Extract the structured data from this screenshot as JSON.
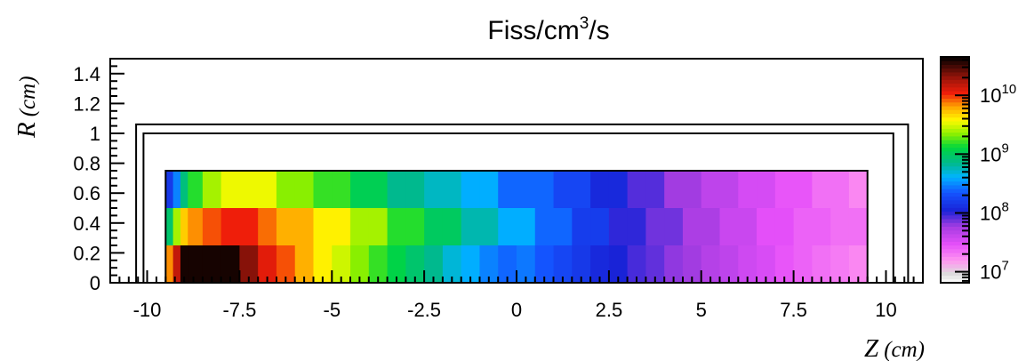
{
  "chart_data": {
    "type": "heatmap",
    "title": "Fiss/cm",
    "title_superscript": "3",
    "title_suffix": "/s",
    "xlabel": "Z",
    "xlabel_unit": "(cm)",
    "ylabel": "R",
    "ylabel_unit": "(cm)",
    "xlim": [
      -11,
      11
    ],
    "ylim": [
      0,
      1.5
    ],
    "x_ticks": [
      "-10",
      "-7.5",
      "-5",
      "-2.5",
      "0",
      "2.5",
      "5",
      "7.5",
      "10"
    ],
    "y_ticks": [
      "0",
      "0.2",
      "0.4",
      "0.6",
      "0.8",
      "1",
      "1.2",
      "1.4"
    ],
    "color_scale": "log",
    "colorbar_range": [
      6500000,
      45000000000
    ],
    "colorbar_ticks": [
      {
        "value": 10000000,
        "base": "10",
        "exp": "7"
      },
      {
        "value": 100000000,
        "base": "10",
        "exp": "8"
      },
      {
        "value": 1000000000,
        "base": "10",
        "exp": "9"
      },
      {
        "value": 10000000000,
        "base": "10",
        "exp": "10"
      }
    ],
    "grid": false,
    "r_edges": [
      0,
      0.25,
      0.5,
      0.75
    ],
    "z_edges": [
      -9.5,
      -9.3,
      -9.1,
      -8.9,
      -8.5,
      -8.0,
      -7.5,
      -7.0,
      -6.5,
      -6.0,
      -5.5,
      -5.0,
      -4.5,
      -4.0,
      -3.5,
      -3.0,
      -2.5,
      -2.0,
      -1.5,
      -1.0,
      -0.5,
      0.0,
      0.5,
      1.0,
      1.5,
      2.0,
      2.5,
      3.0,
      3.5,
      4.0,
      4.5,
      5.0,
      5.5,
      6.0,
      6.5,
      7.0,
      7.5,
      8.0,
      8.5,
      9.0,
      9.5
    ],
    "rows": [
      {
        "r_range": [
          0.5,
          0.75
        ],
        "values": [
          150000000,
          300000000,
          800000000,
          1500000000,
          2500000000,
          3500000000,
          3500000000,
          3500000000,
          2200000000,
          2200000000,
          1600000000,
          1600000000,
          1100000000,
          1100000000,
          700000000,
          700000000,
          550000000,
          550000000,
          400000000,
          400000000,
          250000000,
          250000000,
          250000000,
          180000000,
          180000000,
          120000000,
          120000000,
          85000000,
          85000000,
          60000000,
          60000000,
          45000000,
          45000000,
          35000000,
          35000000,
          28000000,
          28000000,
          22000000,
          22000000,
          18000000
        ]
      },
      {
        "r_range": [
          0.25,
          0.5
        ],
        "values": [
          900000000,
          2500000000,
          5000000000,
          7000000000,
          9000000000,
          11000000000,
          11000000000,
          8000000000,
          6000000000,
          6000000000,
          4000000000,
          4000000000,
          2500000000,
          2500000000,
          1500000000,
          1500000000,
          1000000000,
          1000000000,
          600000000,
          600000000,
          400000000,
          400000000,
          250000000,
          250000000,
          160000000,
          160000000,
          100000000,
          100000000,
          75000000,
          75000000,
          55000000,
          55000000,
          40000000,
          40000000,
          30000000,
          30000000,
          25000000,
          25000000,
          22000000,
          22000000
        ]
      },
      {
        "r_range": [
          0,
          0.25
        ],
        "values": [
          7000000000,
          15000000000,
          40000000000,
          40000000000,
          40000000000,
          40000000000,
          22000000000,
          12000000000,
          9000000000,
          6000000000,
          4000000000,
          3000000000,
          2200000000,
          1600000000,
          1200000000,
          900000000,
          700000000,
          500000000,
          400000000,
          300000000,
          250000000,
          280000000,
          220000000,
          180000000,
          150000000,
          120000000,
          110000000,
          90000000,
          80000000,
          65000000,
          60000000,
          50000000,
          45000000,
          38000000,
          34000000,
          28000000,
          25000000,
          22000000,
          20000000,
          18000000
        ]
      }
    ],
    "outlines": [
      {
        "z": [
          -10.3,
          10.6
        ],
        "r": [
          0,
          1.06
        ]
      },
      {
        "z": [
          -10.1,
          10.2
        ],
        "r": [
          0,
          1.0
        ]
      },
      {
        "z": [
          -9.5,
          9.5
        ],
        "r": [
          0,
          0.75
        ]
      }
    ]
  }
}
